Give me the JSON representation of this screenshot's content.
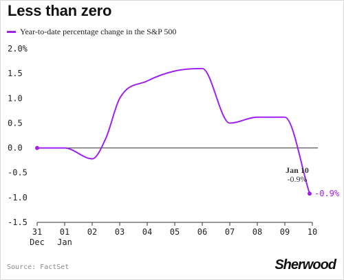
{
  "chart_data": {
    "type": "line",
    "title": "Less than zero",
    "series": [
      {
        "name": "Year-to-date percentage change in the S&P 500",
        "color": "#a020f0",
        "x": [
          0,
          1,
          2,
          2.5,
          3,
          4,
          5,
          6,
          7,
          8,
          9,
          9.9
        ],
        "values": [
          0.0,
          0.0,
          -0.22,
          0.2,
          1.0,
          1.35,
          1.55,
          1.6,
          0.5,
          0.62,
          0.62,
          -0.92
        ]
      }
    ],
    "x_ticks": [
      {
        "x": 0,
        "label": "31",
        "sublabel": "Dec"
      },
      {
        "x": 1,
        "label": "01",
        "sublabel": "Jan"
      },
      {
        "x": 2,
        "label": "02"
      },
      {
        "x": 3,
        "label": "03"
      },
      {
        "x": 4,
        "label": "04"
      },
      {
        "x": 5,
        "label": "05"
      },
      {
        "x": 6,
        "label": "06"
      },
      {
        "x": 7,
        "label": "07"
      },
      {
        "x": 8,
        "label": "08"
      },
      {
        "x": 9,
        "label": "09"
      },
      {
        "x": 10,
        "label": "10"
      }
    ],
    "y_ticks": [
      "2.0%",
      "1.5",
      "1.0",
      "0.5",
      "0.0",
      "-0.5",
      "-1.0",
      "-1.5"
    ],
    "y_tick_values": [
      2.0,
      1.5,
      1.0,
      0.5,
      0.0,
      -0.5,
      -1.0,
      -1.5
    ],
    "ylim": [
      -1.5,
      2.0
    ],
    "xlim": [
      0,
      10
    ],
    "grid": false,
    "end_label": "-0.9%",
    "annotation": {
      "title": "Jan 10",
      "value": "-0.9%"
    },
    "source": "Source: FactSet",
    "brand": "Sherwood"
  }
}
